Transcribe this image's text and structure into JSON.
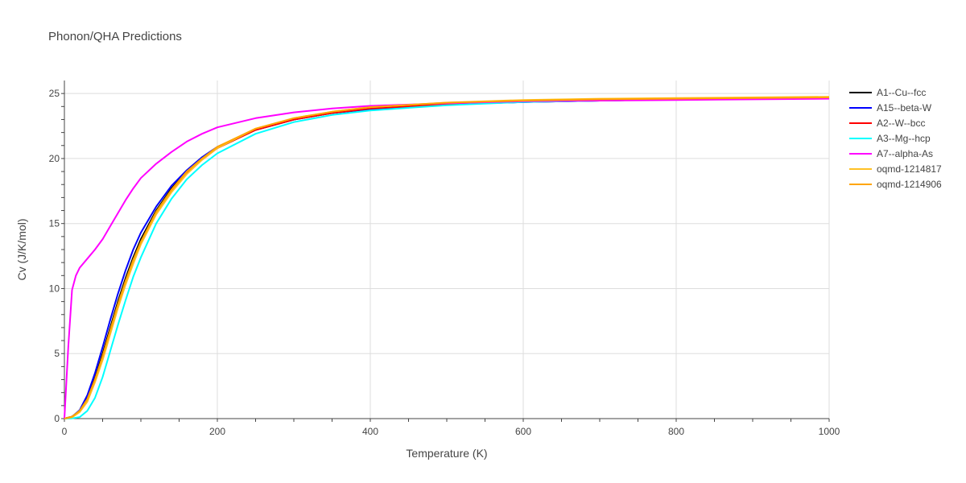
{
  "chart_data": {
    "type": "line",
    "title": "Phonon/QHA Predictions",
    "xlabel": "Temperature (K)",
    "ylabel": "Cv (J/K/mol)",
    "xlim": [
      0,
      1000
    ],
    "ylim": [
      0,
      26
    ],
    "x_ticks": [
      0,
      200,
      400,
      600,
      800,
      1000
    ],
    "y_ticks": [
      0,
      5,
      10,
      15,
      20,
      25
    ],
    "grid": true,
    "legend_position": "right",
    "series": [
      {
        "name": "A1--Cu--fcc",
        "color": "#000000",
        "x": [
          0,
          10,
          20,
          30,
          40,
          50,
          60,
          70,
          80,
          90,
          100,
          120,
          140,
          160,
          180,
          200,
          250,
          300,
          350,
          400,
          500,
          600,
          700,
          800,
          1000
        ],
        "y": [
          0,
          0.15,
          0.6,
          1.6,
          3.1,
          5.0,
          7.0,
          9.0,
          10.8,
          12.4,
          13.8,
          16.0,
          17.7,
          19.0,
          20.0,
          20.8,
          22.2,
          23.0,
          23.5,
          23.8,
          24.15,
          24.35,
          24.45,
          24.55,
          24.65
        ]
      },
      {
        "name": "A15--beta-W",
        "color": "#0000ff",
        "x": [
          0,
          10,
          20,
          30,
          40,
          50,
          60,
          70,
          80,
          90,
          100,
          120,
          140,
          160,
          180,
          200,
          250,
          300,
          350,
          400,
          500,
          600,
          700,
          800,
          1000
        ],
        "y": [
          0,
          0.15,
          0.65,
          1.8,
          3.5,
          5.5,
          7.6,
          9.6,
          11.4,
          13.0,
          14.3,
          16.3,
          17.9,
          19.1,
          20.1,
          20.9,
          22.2,
          23.0,
          23.5,
          23.8,
          24.15,
          24.35,
          24.45,
          24.55,
          24.65
        ]
      },
      {
        "name": "A2--W--bcc",
        "color": "#ff0000",
        "x": [
          0,
          10,
          20,
          30,
          40,
          50,
          60,
          70,
          80,
          90,
          100,
          120,
          140,
          160,
          180,
          200,
          250,
          300,
          350,
          400,
          500,
          600,
          700,
          800,
          1000
        ],
        "y": [
          0,
          0.15,
          0.55,
          1.5,
          3.0,
          4.8,
          6.8,
          8.7,
          10.5,
          12.1,
          13.5,
          15.8,
          17.5,
          18.9,
          19.9,
          20.8,
          22.2,
          23.0,
          23.5,
          23.85,
          24.2,
          24.4,
          24.5,
          24.6,
          24.7
        ]
      },
      {
        "name": "A3--Mg--hcp",
        "color": "#00ffff",
        "x": [
          0,
          10,
          20,
          30,
          40,
          50,
          60,
          70,
          80,
          90,
          100,
          120,
          140,
          160,
          180,
          200,
          250,
          300,
          350,
          400,
          500,
          600,
          700,
          800,
          1000
        ],
        "y": [
          0,
          0.02,
          0.12,
          0.6,
          1.6,
          3.2,
          5.2,
          7.2,
          9.1,
          10.9,
          12.4,
          15.0,
          16.9,
          18.4,
          19.5,
          20.4,
          21.9,
          22.8,
          23.35,
          23.7,
          24.1,
          24.35,
          24.45,
          24.55,
          24.65
        ]
      },
      {
        "name": "A7--alpha-As",
        "color": "#ff00ff",
        "x": [
          0,
          5,
          10,
          15,
          20,
          30,
          40,
          50,
          60,
          70,
          80,
          90,
          100,
          120,
          140,
          160,
          180,
          200,
          250,
          300,
          350,
          400,
          500,
          600,
          700,
          800,
          1000
        ],
        "y": [
          0,
          5.5,
          9.9,
          11.0,
          11.6,
          12.3,
          13.0,
          13.8,
          14.8,
          15.8,
          16.8,
          17.7,
          18.5,
          19.6,
          20.5,
          21.3,
          21.9,
          22.4,
          23.1,
          23.55,
          23.85,
          24.05,
          24.25,
          24.4,
          24.45,
          24.5,
          24.6
        ]
      },
      {
        "name": "oqmd-1214817",
        "color": "#ffc125",
        "x": [
          0,
          10,
          20,
          30,
          40,
          50,
          60,
          70,
          80,
          90,
          100,
          120,
          140,
          160,
          180,
          200,
          250,
          300,
          350,
          400,
          500,
          600,
          700,
          800,
          1000
        ],
        "y": [
          0,
          0.1,
          0.5,
          1.3,
          2.8,
          4.5,
          6.5,
          8.5,
          10.3,
          11.9,
          13.4,
          15.7,
          17.4,
          18.8,
          19.9,
          20.8,
          22.3,
          23.1,
          23.6,
          23.95,
          24.3,
          24.5,
          24.6,
          24.65,
          24.75
        ]
      },
      {
        "name": "oqmd-1214906",
        "color": "#ffa500",
        "x": [
          0,
          10,
          20,
          30,
          40,
          50,
          60,
          70,
          80,
          90,
          100,
          120,
          140,
          160,
          180,
          200,
          250,
          300,
          350,
          400,
          500,
          600,
          700,
          800,
          1000
        ],
        "y": [
          0,
          0.15,
          0.6,
          1.5,
          3.0,
          4.8,
          6.8,
          8.8,
          10.6,
          12.2,
          13.6,
          15.9,
          17.6,
          19.0,
          20.0,
          20.9,
          22.3,
          23.1,
          23.6,
          23.95,
          24.3,
          24.45,
          24.55,
          24.6,
          24.7
        ]
      }
    ]
  }
}
